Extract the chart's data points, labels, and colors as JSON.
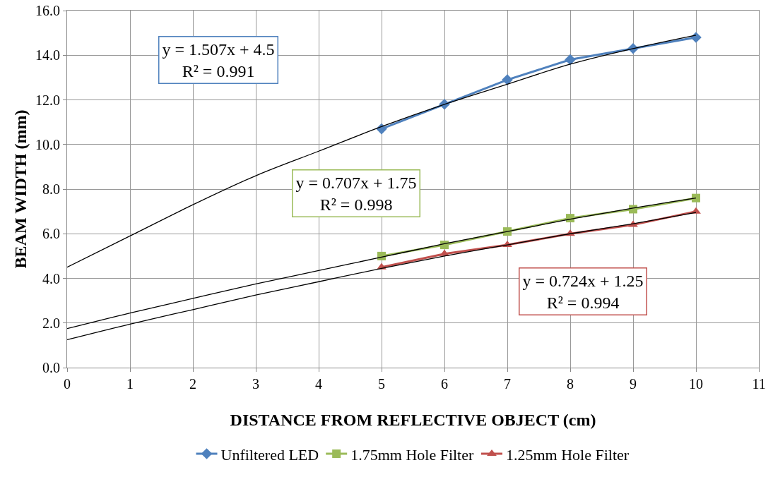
{
  "chart_data": {
    "type": "line",
    "xlabel": "DISTANCE FROM REFLECTIVE OBJECT (cm)",
    "ylabel": "BEAM WIDTH (mm)",
    "x": [
      5,
      6,
      7,
      8,
      9,
      10
    ],
    "series": [
      {
        "name": "Unfiltered LED",
        "color": "#4f81bd",
        "marker": "diamond",
        "values": [
          10.7,
          11.8,
          12.9,
          13.8,
          14.3,
          14.8
        ]
      },
      {
        "name": "1.75mm Hole Filter",
        "color": "#9bbb59",
        "marker": "square",
        "values": [
          5.0,
          5.5,
          6.1,
          6.7,
          7.1,
          7.6
        ]
      },
      {
        "name": "1.25mm Hole Filter",
        "color": "#c0504d",
        "marker": "triangle",
        "values": [
          4.5,
          5.1,
          5.5,
          6.0,
          6.4,
          7.0
        ]
      },
      {
        "type": "line",
        "color": "#000000",
        "marker": "none",
        "x": [
          0,
          1,
          2,
          3,
          4,
          5,
          6,
          7,
          8,
          9,
          10
        ],
        "values": [
          4.5,
          5.9,
          7.3,
          8.6,
          9.7,
          10.8,
          11.8,
          12.7,
          13.6,
          14.3,
          14.9
        ]
      },
      {
        "type": "line",
        "color": "#000000",
        "marker": "none",
        "x": [
          0,
          1,
          2,
          3,
          4,
          5,
          6,
          7,
          8,
          9,
          10
        ],
        "values": [
          1.75,
          2.45,
          3.1,
          3.75,
          4.35,
          4.95,
          5.55,
          6.1,
          6.65,
          7.15,
          7.6
        ]
      },
      {
        "type": "line",
        "color": "#000000",
        "marker": "none",
        "x": [
          0,
          1,
          2,
          3,
          4,
          5,
          6,
          7,
          8,
          9,
          10
        ],
        "values": [
          1.25,
          1.95,
          2.6,
          3.25,
          3.85,
          4.45,
          5.0,
          5.5,
          6.0,
          6.45,
          6.95
        ]
      }
    ],
    "annotations": [
      "y = 1.507x + 4.5\nR² = 0.991",
      "y = 0.707x + 1.75\nR² = 0.998",
      "y = 0.724x + 1.25\nR² = 0.994"
    ],
    "xlim": [
      0,
      11
    ],
    "xticks": [
      0,
      1,
      2,
      3,
      4,
      5,
      6,
      7,
      8,
      9,
      10,
      11
    ],
    "ylim": [
      0,
      16
    ],
    "yticks": [
      {
        "value": 0,
        "label": "0.0"
      },
      {
        "value": 2,
        "label": "2.0"
      },
      {
        "value": 4,
        "label": "4.0"
      },
      {
        "value": 6,
        "label": "6.0"
      },
      {
        "value": 8,
        "label": "8.0"
      },
      {
        "value": 10,
        "label": "10.0"
      },
      {
        "value": 12,
        "label": "12.0"
      },
      {
        "value": 14,
        "label": "14.0"
      },
      {
        "value": 16,
        "label": "16.0"
      }
    ],
    "grid": true,
    "legend": "bottom",
    "line_style": "solid"
  }
}
